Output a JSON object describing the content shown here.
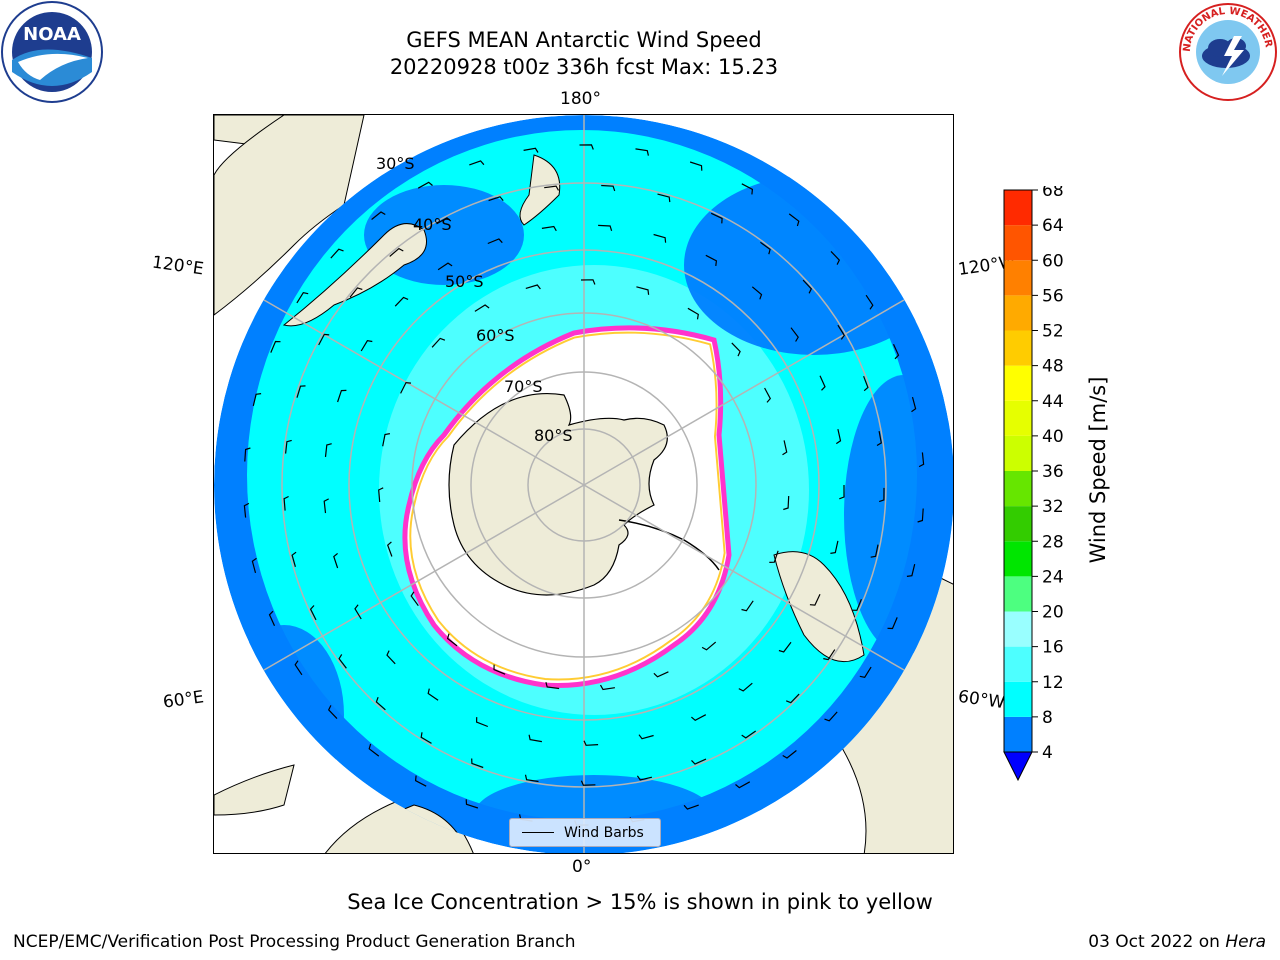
{
  "title": {
    "line1": "GEFS MEAN Antarctic Wind Speed",
    "line2": "20220928 t00z 336h fcst   Max: 15.23"
  },
  "logos": {
    "left": "noaa-logo",
    "left_text": "NOAA",
    "right": "national-weather-service-logo",
    "right_text": "NATIONAL WEATHER SERVICE"
  },
  "map": {
    "projection": "south-polar-stereographic",
    "longitude_labels": {
      "top": "180°",
      "bottom": "0°",
      "upper_left": "120°E",
      "upper_right": "120°W",
      "lower_left": "60°E",
      "lower_right": "60°W"
    },
    "latitude_labels": [
      "30°S",
      "40°S",
      "50°S",
      "60°S",
      "70°S",
      "80°S"
    ],
    "legend_label": "Wind Barbs",
    "colors": {
      "land": "#eeecd8",
      "ocean_low": "#0080ff",
      "ocean_mid": "#00ffff",
      "ocean_high": "#4dffff",
      "ice": "#ffffff",
      "ice_edge": "#ff33cc",
      "ice_edge_inner": "#ffcc33",
      "grid": "#b4b4b4"
    }
  },
  "colorbar": {
    "label": "Wind Speed [m/s]",
    "ticks": [
      "4",
      "8",
      "12",
      "16",
      "20",
      "24",
      "28",
      "32",
      "36",
      "40",
      "44",
      "48",
      "52",
      "56",
      "60",
      "64",
      "68"
    ],
    "colors": [
      "#0080ff",
      "#00ffff",
      "#4dffff",
      "#99ffff",
      "#4dff80",
      "#00e600",
      "#33cc00",
      "#66e600",
      "#ccff00",
      "#e6ff00",
      "#ffff00",
      "#ffcc00",
      "#ffaa00",
      "#ff8000",
      "#ff5500",
      "#ff2a00"
    ],
    "under_color": "#0000ff"
  },
  "footer": {
    "note": "Sea Ice Concentration > 15% is shown in pink to yellow",
    "credit": "NCEP/EMC/Verification Post Processing Product Generation Branch",
    "date": "03 Oct 2022 on",
    "host": "Hera"
  }
}
